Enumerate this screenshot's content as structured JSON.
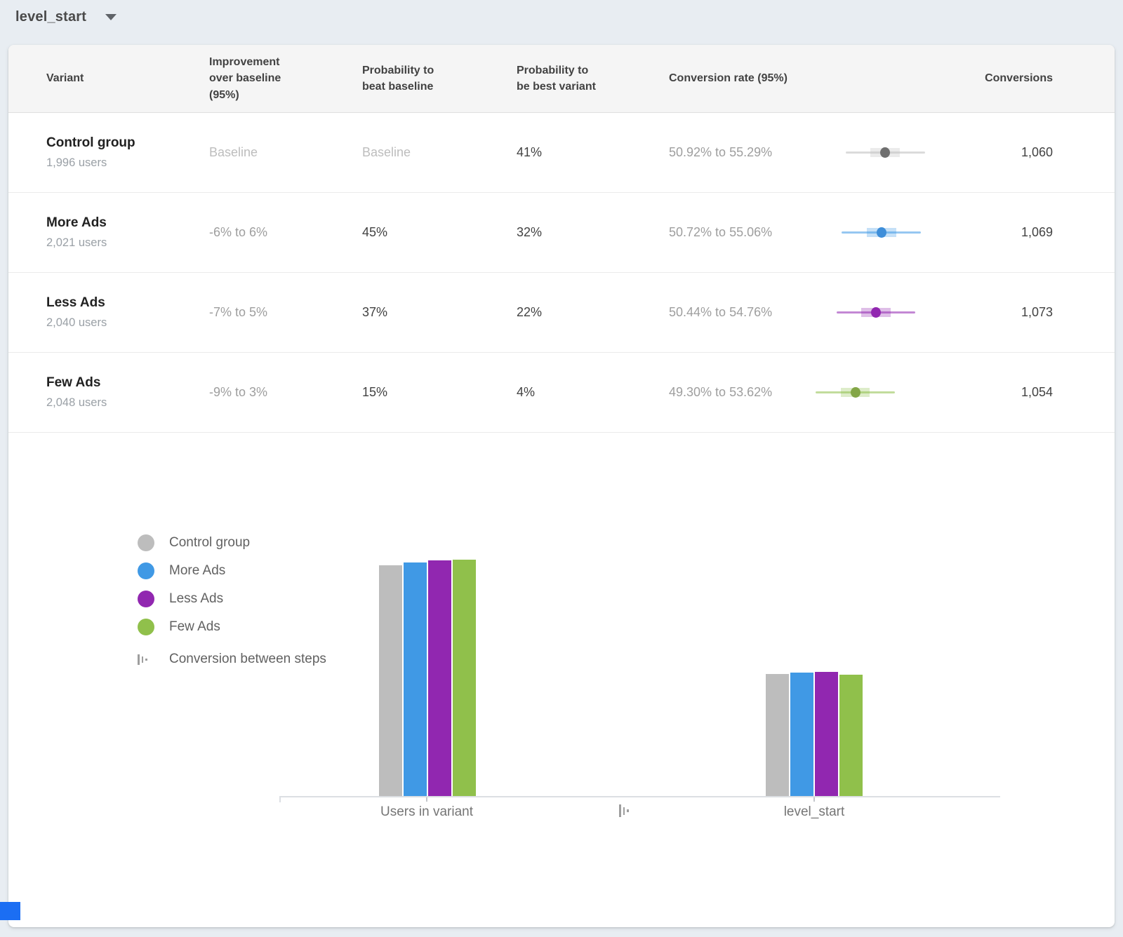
{
  "toolbar": {
    "metric_selector": "level_start"
  },
  "colors": {
    "background": "#e8edf2",
    "card": "#ffffff",
    "header_bg": "#f5f5f5",
    "control_gray": "#bdbdbd",
    "more_ads_blue": "#4099e5",
    "less_ads_purple": "#9127b0",
    "few_ads_green": "#90c04b",
    "accent_blue": "#1b6ef3"
  },
  "table": {
    "columns": [
      "Variant",
      "Improvement over baseline (95%)",
      "Probability to beat baseline",
      "Probability to be best variant",
      "Conversion rate (95%)",
      "Conversions"
    ],
    "rows": [
      {
        "variant": "Control group",
        "users": "1,996 users",
        "improvement": "Baseline",
        "improvement_is_baseline": true,
        "prob_beat": "Baseline",
        "prob_beat_is_baseline": true,
        "prob_best": "41%",
        "conv_rate": "50.92% to 55.29%",
        "ci_low": 50.92,
        "ci_high": 55.29,
        "conversions": "1,060",
        "color": "#bdbdbd",
        "dot_color": "#6f6f6f"
      },
      {
        "variant": "More Ads",
        "users": "2,021 users",
        "improvement": "-6% to 6%",
        "improvement_is_baseline": false,
        "prob_beat": "45%",
        "prob_beat_is_baseline": false,
        "prob_best": "32%",
        "conv_rate": "50.72% to 55.06%",
        "ci_low": 50.72,
        "ci_high": 55.06,
        "conversions": "1,069",
        "color": "#4099e5",
        "dot_color": "#3e8ed9"
      },
      {
        "variant": "Less Ads",
        "users": "2,040 users",
        "improvement": "-7% to 5%",
        "improvement_is_baseline": false,
        "prob_beat": "37%",
        "prob_beat_is_baseline": false,
        "prob_best": "22%",
        "conv_rate": "50.44% to 54.76%",
        "ci_low": 50.44,
        "ci_high": 54.76,
        "conversions": "1,073",
        "color": "#9127b0",
        "dot_color": "#9127b0"
      },
      {
        "variant": "Few Ads",
        "users": "2,048 users",
        "improvement": "-9% to 3%",
        "improvement_is_baseline": false,
        "prob_beat": "15%",
        "prob_beat_is_baseline": false,
        "prob_best": "4%",
        "conv_rate": "49.30% to 53.62%",
        "ci_low": 49.3,
        "ci_high": 53.62,
        "conversions": "1,054",
        "color": "#90c04b",
        "dot_color": "#83a647"
      }
    ]
  },
  "legend": {
    "items": [
      {
        "label": "Control group",
        "color": "#bdbdbd"
      },
      {
        "label": "More Ads",
        "color": "#4099e5"
      },
      {
        "label": "Less Ads",
        "color": "#9127b0"
      },
      {
        "label": "Few Ads",
        "color": "#90c04b"
      }
    ],
    "steps_label": "Conversion between steps"
  },
  "chart_data": {
    "type": "bar",
    "categories": [
      "Users in variant",
      "level_start"
    ],
    "series": [
      {
        "name": "Control group",
        "color": "#bdbdbd",
        "values": [
          1996,
          1060
        ]
      },
      {
        "name": "More Ads",
        "color": "#4099e5",
        "values": [
          2021,
          1069
        ]
      },
      {
        "name": "Less Ads",
        "color": "#9127b0",
        "values": [
          2040,
          1073
        ]
      },
      {
        "name": "Few Ads",
        "color": "#90c04b",
        "values": [
          2048,
          1054
        ]
      }
    ],
    "ylim": [
      0,
      2100
    ],
    "grid": false,
    "legend_position": "left",
    "xlabel": "",
    "ylabel": ""
  }
}
